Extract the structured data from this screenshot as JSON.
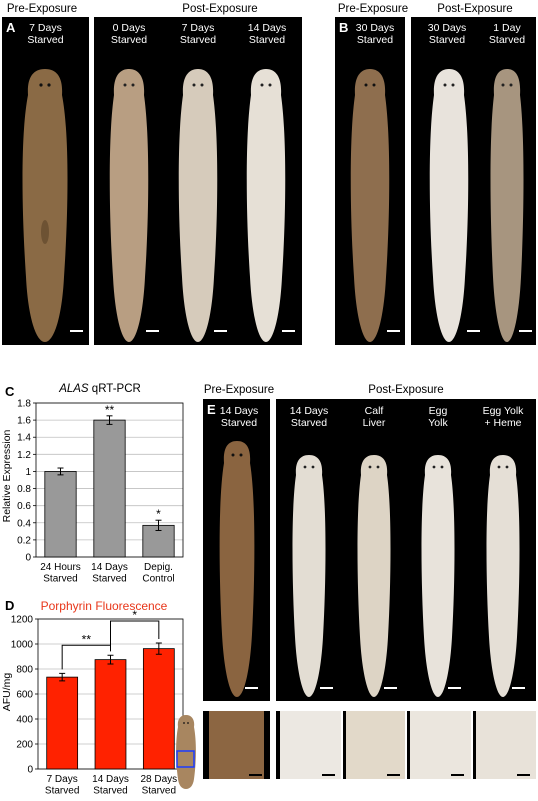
{
  "panel_a": {
    "label": "A",
    "header_pre": "Pre-Exposure",
    "header_post": "Post-Exposure",
    "worms": [
      "7 Days\nStarved",
      "0 Days\nStarved",
      "7 Days\nStarved",
      "14 Days\nStarved"
    ]
  },
  "panel_b": {
    "label": "B",
    "header_pre": "Pre-Exposure",
    "header_post": "Post-Exposure",
    "worms": [
      "30 Days\nStarved",
      "30 Days\nStarved",
      "1 Day\nStarved"
    ]
  },
  "panel_e": {
    "label": "E",
    "header_pre": "Pre-Exposure",
    "header_post": "Post-Exposure",
    "worms": [
      "14 Days\nStarved",
      "14 Days\nStarved",
      "Calf\nLiver",
      "Egg\nYolk",
      "Egg Yolk\n+ Heme"
    ]
  },
  "colors": {
    "pigmented_worm": "#8a6a45",
    "depigmented_worm": "#e6e0d6",
    "bar_gray": "#999999",
    "bar_red": "#ff2200",
    "title_red": "#e8361a",
    "inset_box": "#1a3cff"
  },
  "chart_data": [
    {
      "panel": "C",
      "type": "bar",
      "title_italic": "ALAS",
      "title_rest": " qRT-PCR",
      "ylabel": "Relative Expression",
      "categories": [
        "24 Hours\nStarved",
        "14 Days\nStarved",
        "Depig.\nControl"
      ],
      "values": [
        1.0,
        1.6,
        0.37
      ],
      "errors": [
        0.04,
        0.05,
        0.06
      ],
      "significance": [
        "",
        "**",
        "*"
      ],
      "ylim": [
        0,
        1.8
      ],
      "yticks": [
        "0",
        "0.2",
        "0.4",
        "0.6",
        "0.8",
        "1",
        "1.2",
        "1.4",
        "1.6",
        "1.8"
      ],
      "grid": true
    },
    {
      "panel": "D",
      "type": "bar",
      "title": "Porphyrin Fluorescence",
      "ylabel": "AFU/mg",
      "categories": [
        "7 Days\nStarved",
        "14 Days\nStarved",
        "28 Days\nStarved"
      ],
      "values": [
        735,
        875,
        963
      ],
      "errors": [
        30,
        35,
        45
      ],
      "brackets": [
        {
          "from": 0,
          "to": 1,
          "label": "**"
        },
        {
          "from": 1,
          "to": 2,
          "label": "*"
        }
      ],
      "ylim": [
        0,
        1200
      ],
      "yticks": [
        "0",
        "200",
        "400",
        "600",
        "800",
        "1000",
        "1200"
      ],
      "grid": true
    }
  ]
}
